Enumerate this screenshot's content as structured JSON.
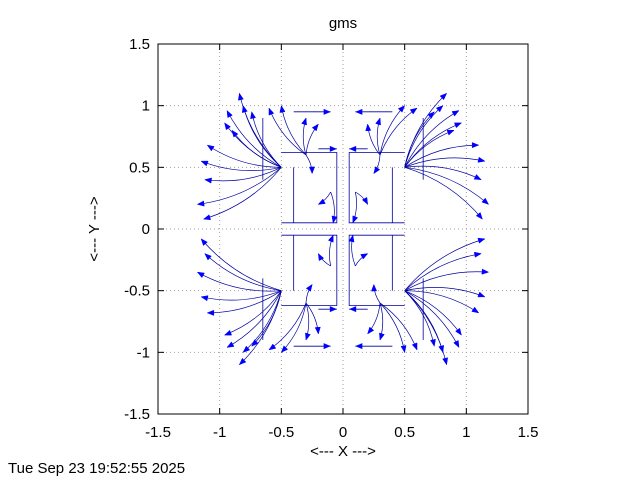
{
  "timestamp": "Tue Sep 23 19:52:55 2025",
  "chart_data": {
    "type": "vector-field",
    "title": "gms",
    "xlabel": "<--- X --->",
    "ylabel": "<--- Y --->",
    "xlim": [
      -1.5,
      1.5
    ],
    "ylim": [
      -1.5,
      1.5
    ],
    "xticks": [
      -1.5,
      -1,
      -0.5,
      0,
      0.5,
      1,
      1.5
    ],
    "yticks": [
      -1.5,
      -1,
      -0.5,
      0,
      0.5,
      1,
      1.5
    ],
    "xtick_labels": [
      "-1.5",
      "-1",
      "-0.5",
      "0",
      "0.5",
      "1",
      "1.5"
    ],
    "ytick_labels": [
      "-1.5",
      "-1",
      "-0.5",
      "0",
      "0.5",
      "1",
      "1.5"
    ],
    "grid": true,
    "grid_style": "dotted",
    "arrow_color": "#0000ff",
    "line_color": "#0000a0",
    "arrow_tips": [
      [
        -0.84,
        1.1
      ],
      [
        -0.81,
        1.0
      ],
      [
        -0.74,
        0.95
      ],
      [
        -0.6,
        0.98
      ],
      [
        -0.5,
        1.0
      ],
      [
        -0.94,
        0.96
      ],
      [
        -0.96,
        0.86
      ],
      [
        -0.9,
        0.8
      ],
      [
        -1.1,
        0.68
      ],
      [
        -1.15,
        0.55
      ],
      [
        -1.12,
        0.4
      ],
      [
        -1.18,
        0.2
      ],
      [
        -1.13,
        0.08
      ],
      [
        -1.15,
        -0.08
      ],
      [
        -1.12,
        -0.2
      ],
      [
        -1.18,
        -0.35
      ],
      [
        -1.15,
        -0.55
      ],
      [
        -1.1,
        -0.68
      ],
      [
        -0.96,
        -0.86
      ],
      [
        -0.94,
        -0.96
      ],
      [
        -0.84,
        -1.1
      ],
      [
        -0.81,
        -1.0
      ],
      [
        -0.74,
        -0.95
      ],
      [
        -0.6,
        -0.98
      ],
      [
        -0.5,
        -1.0
      ],
      [
        -0.3,
        0.9
      ],
      [
        -0.2,
        0.85
      ],
      [
        -0.3,
        -0.9
      ],
      [
        -0.2,
        -0.85
      ],
      [
        -0.25,
        0.45
      ],
      [
        -0.2,
        0.2
      ],
      [
        -0.25,
        -0.45
      ],
      [
        -0.2,
        -0.2
      ],
      [
        -0.08,
        0.05
      ],
      [
        -0.08,
        -0.05
      ]
    ],
    "bracket_half_width": 0.5,
    "bracket_height": 0.5
  }
}
